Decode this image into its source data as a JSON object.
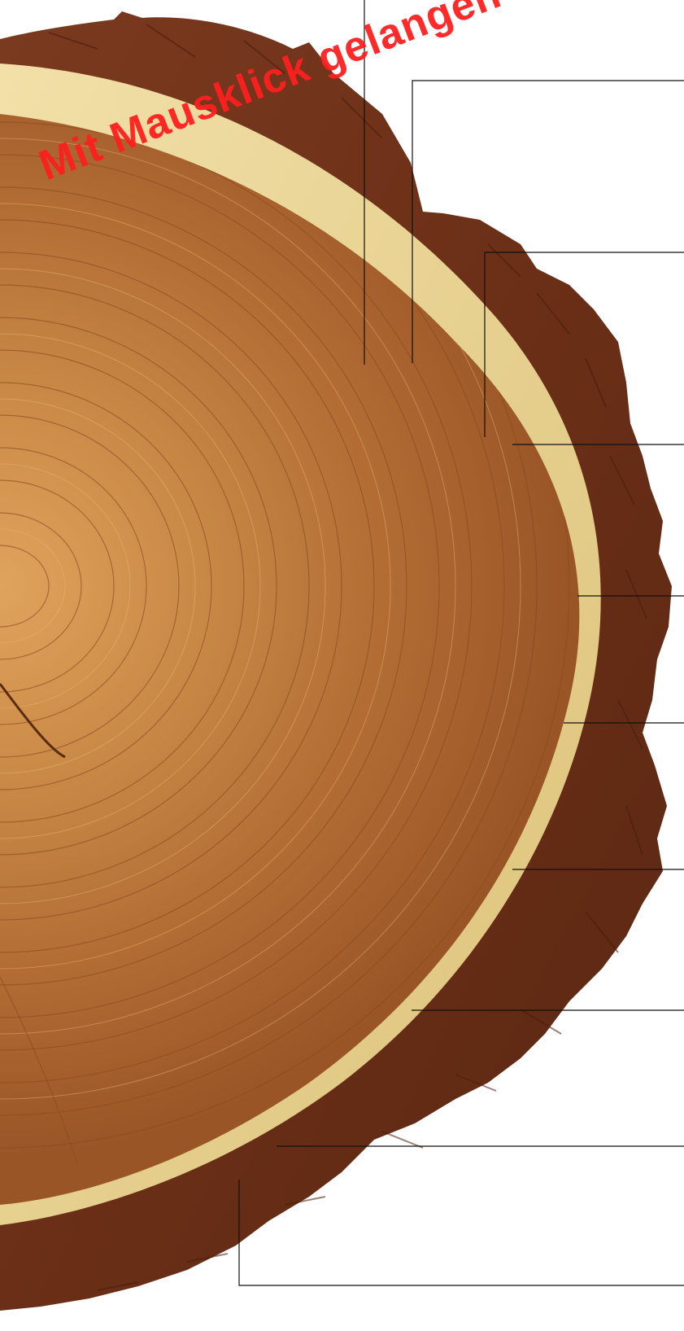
{
  "watermark": {
    "text": "Mit Mausklick gelangen Sie zum"
  },
  "image": {
    "subject": "tree-trunk-cross-section",
    "colors": {
      "bark": "#6e3218",
      "sapwood": "#e9cf8a",
      "heartwood": "#b9743a",
      "line": "#1a1a1a",
      "watermark": "#ff1f1f"
    }
  },
  "leader_lines": [
    {
      "id": "callout-1"
    },
    {
      "id": "callout-2"
    },
    {
      "id": "callout-3"
    },
    {
      "id": "callout-4"
    },
    {
      "id": "callout-5"
    },
    {
      "id": "callout-6"
    },
    {
      "id": "callout-7"
    },
    {
      "id": "callout-8"
    },
    {
      "id": "callout-9"
    },
    {
      "id": "callout-10"
    }
  ]
}
